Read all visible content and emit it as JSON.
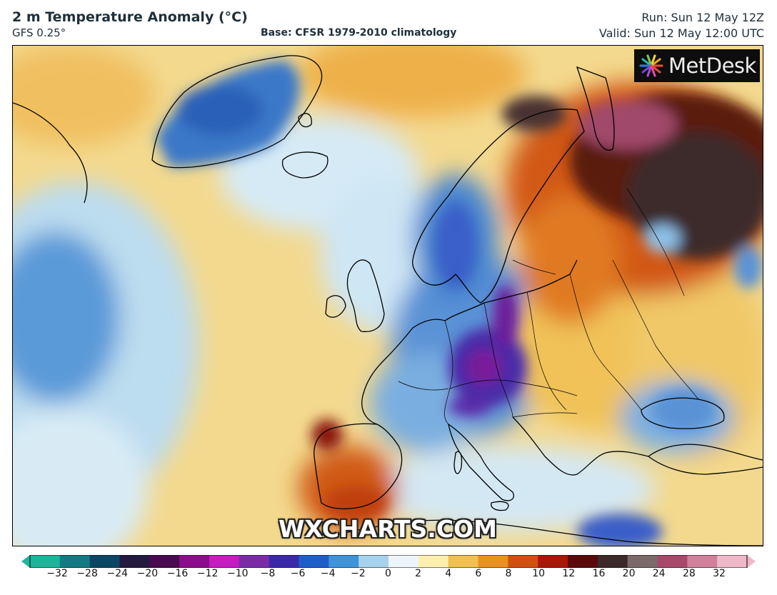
{
  "header": {
    "title": "2 m Temperature Anomaly (°C)",
    "model": "GFS 0.25°",
    "base": "Base: CFSR 1979-2010 climatology",
    "run": "Run: Sun 12 May 12Z",
    "valid": "Valid: Sun 12 May 12:00 UTC"
  },
  "branding": {
    "logo_text": "MetDesk",
    "watermark": "WXCHARTS.COM"
  },
  "colorbar": {
    "ticks": [
      "−32",
      "−28",
      "−24",
      "−20",
      "−16",
      "−12",
      "−10",
      "−8",
      "−6",
      "−4",
      "−2",
      "0",
      "2",
      "4",
      "6",
      "8",
      "10",
      "12",
      "16",
      "20",
      "24",
      "28",
      "32"
    ],
    "colors": [
      "#1fb39a",
      "#127a80",
      "#0b4763",
      "#241a40",
      "#4a0a4f",
      "#8c0c8c",
      "#c21ec0",
      "#7a2ca8",
      "#3a2aa8",
      "#1e5ec8",
      "#3d94d8",
      "#a7d2ec",
      "#eef5fa",
      "#fcefb0",
      "#f0c050",
      "#e89020",
      "#d05010",
      "#a81808",
      "#5a0a0a",
      "#3c2a2a",
      "#7a6a6a",
      "#a8486a",
      "#d0809a",
      "#eeb8c8"
    ],
    "min_color": "#1fb39a",
    "max_color": "#eeb8c8"
  },
  "colors": {
    "frame": "#000000",
    "ocean_warm": "#f2d58a",
    "cold_anomaly": "#3a6fc8",
    "extreme_cold": "#6a1a9a",
    "hot_anomaly": "#c03010",
    "extreme_hot": "#3c2a2a"
  }
}
